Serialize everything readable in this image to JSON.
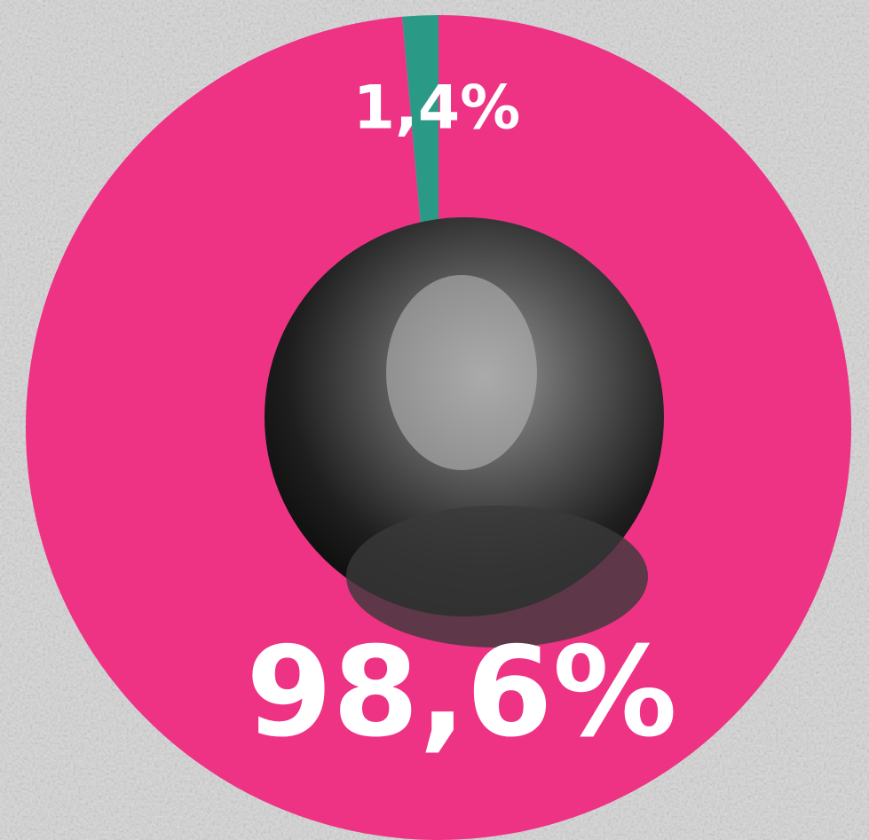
{
  "chart_data": {
    "type": "pie",
    "values": [
      98.6,
      1.4
    ],
    "value_labels": [
      "98,6%",
      "1,4%"
    ],
    "colors": [
      "#ee3384",
      "#2a9a87"
    ]
  }
}
